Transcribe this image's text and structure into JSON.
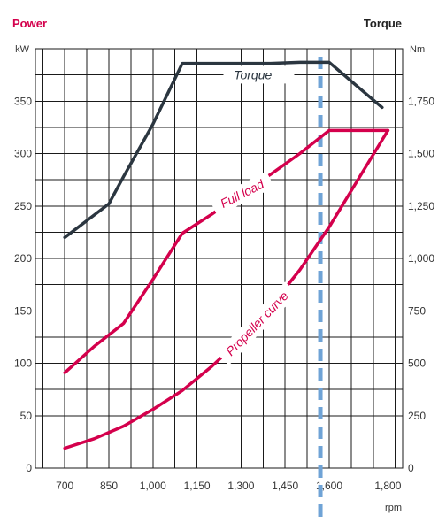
{
  "headers": {
    "left": "Power",
    "right": "Torque",
    "left_unit": "kW",
    "right_unit": "Nm",
    "x_unit": "rpm"
  },
  "chart_data": {
    "type": "line",
    "x_ticks": [
      700,
      850,
      1000,
      1150,
      1300,
      1450,
      1600,
      1800
    ],
    "x_tick_labels": [
      "700",
      "850",
      "1,000",
      "1,150",
      "1,300",
      "1,450",
      "1,600",
      "1,800"
    ],
    "xlim": [
      600,
      1850
    ],
    "y_left_ticks": [
      0,
      50,
      100,
      150,
      200,
      250,
      300,
      350
    ],
    "y_left_tick_labels": [
      "0",
      "50",
      "100",
      "150",
      "200",
      "250",
      "300",
      "350"
    ],
    "ylim_left": [
      0,
      400
    ],
    "y_right_ticks": [
      0,
      250,
      500,
      750,
      1000,
      1250,
      1500,
      1750
    ],
    "y_right_tick_labels": [
      "0",
      "250",
      "500",
      "750",
      "1,000",
      "1,250",
      "1,500",
      "1,750"
    ],
    "ylim_right": [
      0,
      2000
    ],
    "grid": true,
    "vertical_marker_x": 1570,
    "series": [
      {
        "name": "Torque",
        "axis": "right",
        "color": "#2b3640",
        "x": [
          700,
          850,
          900,
          1000,
          1100,
          1250,
          1400,
          1500,
          1600,
          1700,
          1780
        ],
        "y": [
          1100,
          1260,
          1390,
          1640,
          1930,
          1930,
          1930,
          1935,
          1935,
          1815,
          1720
        ]
      },
      {
        "name": "Full load",
        "axis": "left",
        "color": "#d4004c",
        "x": [
          700,
          800,
          900,
          1000,
          1100,
          1200,
          1300,
          1400,
          1500,
          1600,
          1800
        ],
        "y": [
          91,
          116,
          138,
          180,
          224,
          242,
          262,
          280,
          300,
          322,
          322
        ]
      },
      {
        "name": "Propeller curve",
        "axis": "left",
        "color": "#d4004c",
        "x": [
          700,
          800,
          900,
          1000,
          1100,
          1200,
          1300,
          1400,
          1500,
          1600,
          1700,
          1800
        ],
        "y": [
          19,
          28,
          40,
          56,
          74,
          97,
          123,
          154,
          189,
          230,
          276,
          322
        ]
      }
    ],
    "annotations": [
      "Torque",
      "Full load",
      "Propeller curve"
    ]
  }
}
